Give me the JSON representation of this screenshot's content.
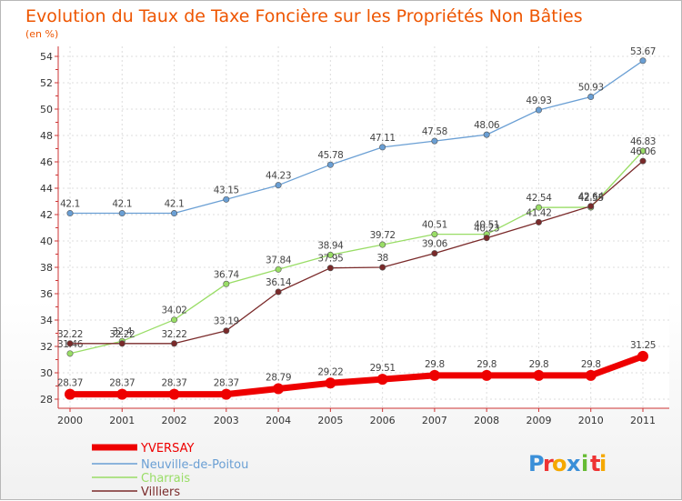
{
  "chart_data": {
    "type": "line",
    "title": "Evolution du Taux de Taxe Foncière sur les Propriétés Non Bâties",
    "subtitle": "(en %)",
    "xlabel": "",
    "ylabel": "",
    "categories": [
      "2000",
      "2001",
      "2002",
      "2003",
      "2004",
      "2005",
      "2006",
      "2007",
      "2008",
      "2009",
      "2010",
      "2011"
    ],
    "ylim": [
      28,
      54
    ],
    "yticks": [
      "28",
      "30",
      "32",
      "34",
      "36",
      "38",
      "40",
      "42",
      "44",
      "46",
      "48",
      "50",
      "52",
      "54"
    ],
    "grid": true,
    "legend_position": "bottom-left",
    "series": [
      {
        "name": "YVERSAY",
        "color": "#ee0000",
        "values": [
          28.37,
          28.37,
          28.37,
          28.37,
          28.79,
          29.22,
          29.51,
          29.8,
          29.8,
          29.8,
          29.8,
          31.25
        ],
        "labels": [
          "28.37",
          "28.37",
          "28.37",
          "28.37",
          "28.79",
          "29.22",
          "29.51",
          "29.8",
          "29.8",
          "29.8",
          "29.8",
          "31.25"
        ]
      },
      {
        "name": "Neuville-de-Poitou",
        "color": "#6a9fd4",
        "values": [
          42.1,
          42.1,
          42.1,
          43.15,
          44.23,
          45.78,
          47.11,
          47.58,
          48.06,
          49.93,
          50.93,
          53.67
        ],
        "labels": [
          "42.1",
          "42.1",
          "42.1",
          "43.15",
          "44.23",
          "45.78",
          "47.11",
          "47.58",
          "48.06",
          "49.93",
          "50.93",
          "53.67"
        ]
      },
      {
        "name": "Charrais",
        "color": "#99dd66",
        "values": [
          31.46,
          32.4,
          34.02,
          36.74,
          37.84,
          38.94,
          39.72,
          40.51,
          40.51,
          42.54,
          42.55,
          46.83
        ],
        "labels": [
          "31.46",
          "32.4",
          "34.02",
          "36.74",
          "37.84",
          "38.94",
          "39.72",
          "40.51",
          "40.51",
          "42.54",
          "42.55",
          "46.83"
        ]
      },
      {
        "name": "Villiers",
        "color": "#7a2a2a",
        "values": [
          32.22,
          32.22,
          32.22,
          33.19,
          36.14,
          37.95,
          38,
          39.06,
          40.23,
          41.42,
          42.64,
          46.06
        ],
        "labels": [
          "32.22",
          "32.22",
          "32.22",
          "33.19",
          "36.14",
          "37.95",
          "38",
          "39.06",
          "40.23",
          "41.42",
          "42.64",
          "46.06"
        ]
      }
    ]
  },
  "brand": {
    "logo_text": "Proxiti",
    "letters": [
      "P",
      "r",
      "o",
      "x",
      "i",
      "t",
      "i"
    ],
    "letter_colors": [
      "#3a8fd8",
      "#ee3333",
      "#f5a800",
      "#3a8fd8",
      "#66bb33",
      "#ee3333",
      "#f5a800"
    ]
  }
}
